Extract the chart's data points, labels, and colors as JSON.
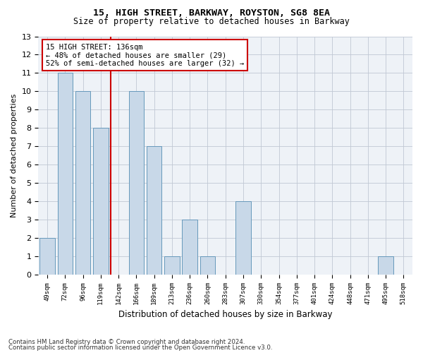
{
  "title1": "15, HIGH STREET, BARKWAY, ROYSTON, SG8 8EA",
  "title2": "Size of property relative to detached houses in Barkway",
  "xlabel": "Distribution of detached houses by size in Barkway",
  "ylabel": "Number of detached properties",
  "categories": [
    "49sqm",
    "72sqm",
    "96sqm",
    "119sqm",
    "142sqm",
    "166sqm",
    "189sqm",
    "213sqm",
    "236sqm",
    "260sqm",
    "283sqm",
    "307sqm",
    "330sqm",
    "354sqm",
    "377sqm",
    "401sqm",
    "424sqm",
    "448sqm",
    "471sqm",
    "495sqm",
    "518sqm"
  ],
  "values": [
    2,
    11,
    10,
    8,
    0,
    10,
    7,
    1,
    3,
    1,
    0,
    4,
    0,
    0,
    0,
    0,
    0,
    0,
    0,
    1,
    0
  ],
  "bar_color": "#c8d8e8",
  "bar_edge_color": "#6699bb",
  "highlight_line_idx": 4,
  "highlight_line_color": "#cc0000",
  "annotation_text": "15 HIGH STREET: 136sqm\n← 48% of detached houses are smaller (29)\n52% of semi-detached houses are larger (32) →",
  "annotation_box_color": "#ffffff",
  "annotation_box_edge": "#cc0000",
  "ylim": [
    0,
    13
  ],
  "yticks": [
    0,
    1,
    2,
    3,
    4,
    5,
    6,
    7,
    8,
    9,
    10,
    11,
    12,
    13
  ],
  "footer1": "Contains HM Land Registry data © Crown copyright and database right 2024.",
  "footer2": "Contains public sector information licensed under the Open Government Licence v3.0.",
  "bg_color": "#eef2f7",
  "grid_color": "#c0c8d4"
}
